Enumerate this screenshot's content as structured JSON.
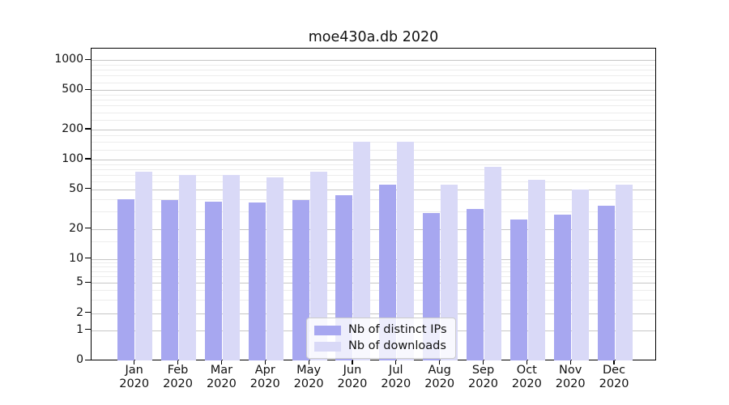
{
  "figure": {
    "background": "#ffffff",
    "axis_color": "#000000",
    "major_grid_color": "#c6c6c6",
    "minor_grid_color": "#ececec"
  },
  "chart_data": {
    "type": "bar",
    "title": "moe430a.db 2020",
    "xlabel": "",
    "ylabel": "",
    "x_categories": [
      "Jan 2020",
      "Feb 2020",
      "Mar 2020",
      "Apr 2020",
      "May 2020",
      "Jun 2020",
      "Jul 2020",
      "Aug 2020",
      "Sep 2020",
      "Oct 2020",
      "Nov 2020",
      "Dec 2020"
    ],
    "months": [
      "Jan",
      "Feb",
      "Mar",
      "Apr",
      "May",
      "Jun",
      "Jul",
      "Aug",
      "Sep",
      "Oct",
      "Nov",
      "Dec"
    ],
    "year": "2020",
    "series": [
      {
        "name": "Nb of distinct IPs",
        "color": "#a7a7f0",
        "values": [
          40,
          39,
          38,
          37,
          39,
          44,
          56,
          29,
          32,
          25,
          28,
          34
        ]
      },
      {
        "name": "Nb of downloads",
        "color": "#d9d9f7",
        "values": [
          75,
          70,
          70,
          66,
          75,
          150,
          150,
          56,
          85,
          63,
          50,
          56
        ]
      }
    ],
    "y_axis": {
      "scale": "log-like with zero baseline",
      "ticks": [
        0,
        1,
        2,
        5,
        10,
        20,
        50,
        100,
        200,
        500,
        1000
      ],
      "range_top": 1300
    },
    "grid": "horizontal major and minor gridlines",
    "legend_position": "bottom center inside plot"
  }
}
